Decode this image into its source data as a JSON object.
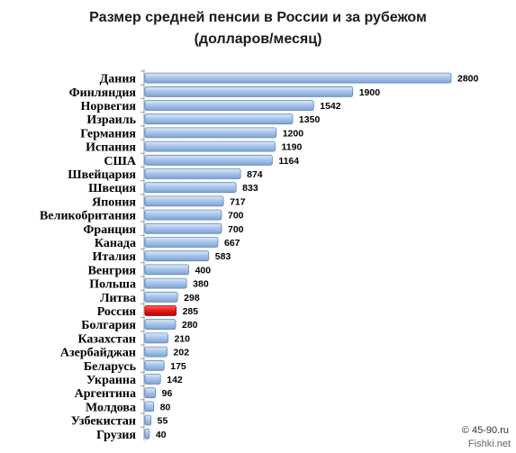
{
  "chart_data": {
    "type": "bar",
    "orientation": "horizontal",
    "title": "Размер средней пенсии в России и за рубежом",
    "subtitle": "(долларов/месяц)",
    "categories": [
      "Дания",
      "Финляндия",
      "Норвегия",
      "Израиль",
      "Германия",
      "Испания",
      "США",
      "Швейцария",
      "Швеция",
      "Япония",
      "Великобритания",
      "Франция",
      "Канада",
      "Италия",
      "Венгрия",
      "Польша",
      "Литва",
      "Россия",
      "Болгария",
      "Казахстан",
      "Азербайджан",
      "Беларусь",
      "Украина",
      "Аргентина",
      "Молдова",
      "Узбекистан",
      "Грузия"
    ],
    "values": [
      2800,
      1900,
      1542,
      1350,
      1200,
      1190,
      1164,
      874,
      833,
      717,
      700,
      700,
      667,
      583,
      400,
      380,
      298,
      285,
      280,
      210,
      202,
      175,
      142,
      96,
      80,
      55,
      40
    ],
    "highlight_category": "Россия",
    "xlim": [
      0,
      2800
    ],
    "grid": false,
    "colors": {
      "bar": "#9dbde4",
      "bar_edge": "#5b86bd",
      "highlight": "#e81818",
      "highlight_edge": "#a80000",
      "axis": "#9a9a9a"
    }
  },
  "credits": {
    "line1": "© 45-90.ru",
    "line2": "Fishki.net"
  }
}
